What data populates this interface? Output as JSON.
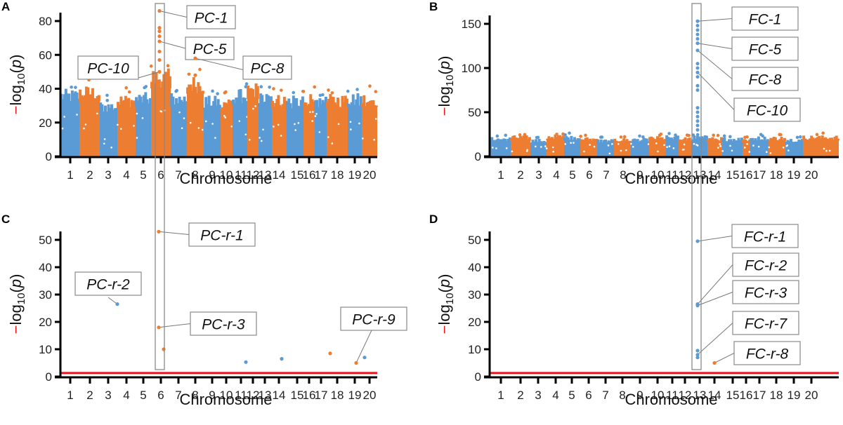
{
  "colors": {
    "blue": "#5b9bd5",
    "orange": "#ed7d31",
    "threshold": "#e8141b",
    "highlight_box": "#888888",
    "axis": "#000000"
  },
  "chart_data": [
    {
      "panel": "A",
      "type": "scatter",
      "subtype": "manhattan",
      "xlabel": "Chromosome",
      "ylabel": "-log10(p)",
      "categories": [
        "1",
        "2",
        "3",
        "4",
        "5",
        "6",
        "7",
        "8",
        "9",
        "10",
        "11",
        "12",
        "13",
        "14",
        "15",
        "16",
        "17",
        "18",
        "19",
        "20"
      ],
      "ylim": [
        0,
        90
      ],
      "yticks": [
        0,
        20,
        40,
        60,
        80
      ],
      "background_peak_by_chromosome": [
        40,
        42,
        33,
        37,
        38,
        52,
        38,
        48,
        36,
        36,
        40,
        44,
        38,
        37,
        36,
        38,
        36,
        37,
        38,
        38
      ],
      "highlight_chromosome": "6",
      "annotations": [
        {
          "label": "PC-1",
          "chromosome": "6",
          "value": 86
        },
        {
          "label": "PC-5",
          "chromosome": "6",
          "value": 68
        },
        {
          "label": "PC-8",
          "chromosome": "8",
          "value": 58
        },
        {
          "label": "PC-10",
          "chromosome": "6",
          "value": 50
        }
      ],
      "extra_points": [
        {
          "chromosome": "6",
          "value": 76
        },
        {
          "chromosome": "6",
          "value": 74
        },
        {
          "chromosome": "6",
          "value": 71
        },
        {
          "chromosome": "6",
          "value": 62
        },
        {
          "chromosome": "6",
          "value": 57
        },
        {
          "chromosome": "8",
          "value": 48
        }
      ],
      "threshold": null
    },
    {
      "panel": "B",
      "type": "scatter",
      "subtype": "manhattan",
      "xlabel": "Chromosome",
      "ylabel": "-log10(p)",
      "categories": [
        "1",
        "2",
        "3",
        "4",
        "5",
        "6",
        "7",
        "8",
        "9",
        "10",
        "11",
        "12",
        "13",
        "14",
        "15",
        "16",
        "17",
        "18",
        "19",
        "20"
      ],
      "ylim": [
        0,
        160
      ],
      "yticks": [
        0,
        50,
        100,
        150
      ],
      "background_peak_by_chromosome": [
        22,
        24,
        20,
        25,
        24,
        22,
        20,
        21,
        21,
        23,
        24,
        22,
        24,
        22,
        22,
        21,
        23,
        23,
        21,
        24
      ],
      "highlight_chromosome": "12",
      "annotations": [
        {
          "label": "FC-1",
          "chromosome": "12",
          "value": 153
        },
        {
          "label": "FC-5",
          "chromosome": "12",
          "value": 128
        },
        {
          "label": "FC-8",
          "chromosome": "12",
          "value": 120
        },
        {
          "label": "FC-10",
          "chromosome": "12",
          "value": 95
        }
      ],
      "extra_points": [
        {
          "chromosome": "12",
          "value": 148
        },
        {
          "chromosome": "12",
          "value": 143
        },
        {
          "chromosome": "12",
          "value": 138
        },
        {
          "chromosome": "12",
          "value": 133
        },
        {
          "chromosome": "12",
          "value": 105
        },
        {
          "chromosome": "12",
          "value": 100
        },
        {
          "chromosome": "12",
          "value": 90
        },
        {
          "chromosome": "12",
          "value": 80
        },
        {
          "chromosome": "12",
          "value": 75
        },
        {
          "chromosome": "12",
          "value": 55
        },
        {
          "chromosome": "12",
          "value": 50
        },
        {
          "chromosome": "12",
          "value": 45
        },
        {
          "chromosome": "12",
          "value": 40
        },
        {
          "chromosome": "12",
          "value": 35
        },
        {
          "chromosome": "12",
          "value": 30
        }
      ],
      "threshold": null
    },
    {
      "panel": "C",
      "type": "scatter",
      "subtype": "manhattan",
      "xlabel": "Chromosome",
      "ylabel": "-log10(p)",
      "categories": [
        "1",
        "2",
        "3",
        "4",
        "5",
        "6",
        "7",
        "8",
        "9",
        "10",
        "11",
        "12",
        "13",
        "14",
        "15",
        "16",
        "17",
        "18",
        "19",
        "20"
      ],
      "ylim": [
        0,
        58
      ],
      "yticks": [
        0,
        10,
        20,
        30,
        40,
        50
      ],
      "highlight_chromosome": "6",
      "annotations": [
        {
          "label": "PC-r-1",
          "chromosome": "6",
          "value": 53,
          "color": "orange"
        },
        {
          "label": "PC-r-2",
          "chromosome": "3",
          "value": 26.5,
          "color": "blue"
        },
        {
          "label": "PC-r-3",
          "chromosome": "6",
          "value": 18,
          "color": "orange"
        },
        {
          "label": "PC-r-9",
          "chromosome": "18",
          "value": 5,
          "color": "orange"
        }
      ],
      "extra_points": [
        {
          "chromosome": "6",
          "value": 10,
          "color": "orange"
        },
        {
          "chromosome": "11",
          "value": 5.3,
          "color": "blue"
        },
        {
          "chromosome": "13",
          "value": 6.5,
          "color": "blue"
        },
        {
          "chromosome": "17",
          "value": 8.5,
          "color": "orange"
        },
        {
          "chromosome": "19",
          "value": 7,
          "color": "blue"
        }
      ],
      "threshold": 1.3
    },
    {
      "panel": "D",
      "type": "scatter",
      "subtype": "manhattan",
      "xlabel": "Chromosome",
      "ylabel": "-log10(p)",
      "categories": [
        "1",
        "2",
        "3",
        "4",
        "5",
        "6",
        "7",
        "8",
        "9",
        "10",
        "11",
        "12",
        "13",
        "14",
        "15",
        "16",
        "17",
        "18",
        "19",
        "20"
      ],
      "ylim": [
        0,
        55
      ],
      "yticks": [
        0,
        10,
        20,
        30,
        40,
        50
      ],
      "highlight_chromosome": "12",
      "annotations": [
        {
          "label": "FC-r-1",
          "chromosome": "12",
          "value": 49.5,
          "color": "blue"
        },
        {
          "label": "FC-r-2",
          "chromosome": "12",
          "value": 26.5,
          "color": "blue"
        },
        {
          "label": "FC-r-3",
          "chromosome": "12",
          "value": 26,
          "color": "blue"
        },
        {
          "label": "FC-r-7",
          "chromosome": "12",
          "value": 8,
          "color": "blue"
        },
        {
          "label": "FC-r-8",
          "chromosome": "13",
          "value": 5,
          "color": "orange"
        }
      ],
      "extra_points": [
        {
          "chromosome": "12",
          "value": 9.5,
          "color": "blue"
        },
        {
          "chromosome": "12",
          "value": 7,
          "color": "blue"
        }
      ],
      "threshold": 1.3
    }
  ]
}
